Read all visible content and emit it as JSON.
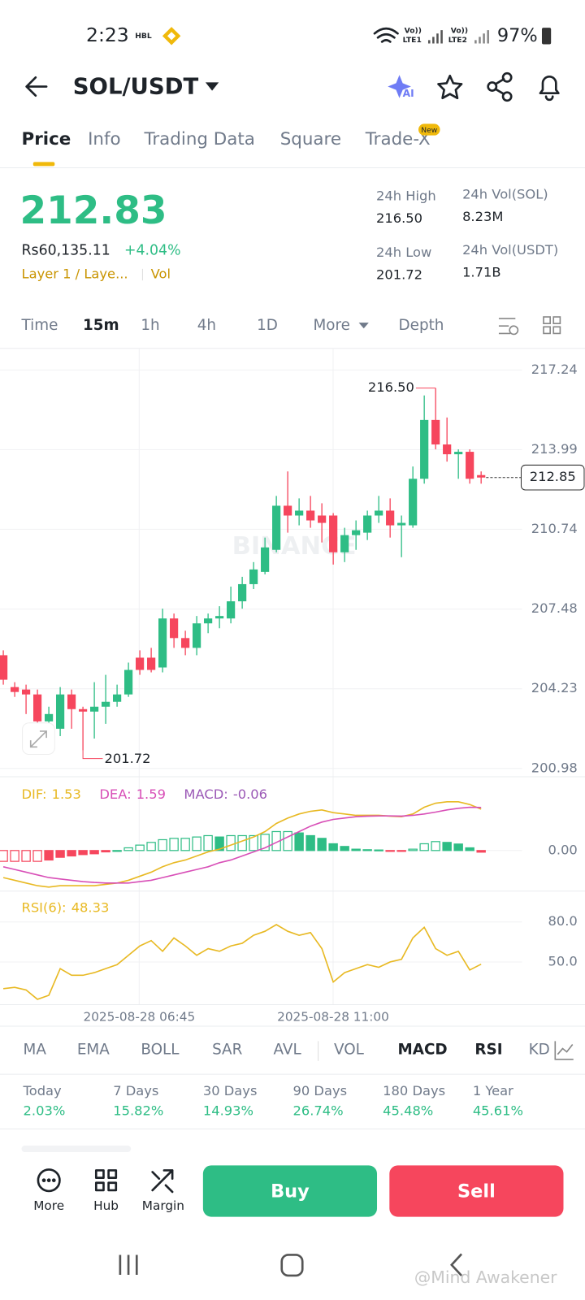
{
  "status": {
    "time": "2:23",
    "carrier": "HBL",
    "volte1": "Vo))",
    "lte1": "LTE1",
    "volte2": "Vo))",
    "lte2": "LTE2",
    "battery": "97%"
  },
  "header": {
    "pair": "SOL/USDT",
    "ai": "AI"
  },
  "tabs": [
    "Price",
    "Info",
    "Trading Data",
    "Square",
    "Trade-X"
  ],
  "new_badge": "New",
  "ticker": {
    "price": "212.83",
    "local_price": "Rs60,135.11",
    "change": "+4.04%",
    "sector": "Layer 1 / Laye...",
    "sector_tag": "Vol",
    "stats": [
      {
        "label": "24h High",
        "value": "216.50"
      },
      {
        "label": "24h Low",
        "value": "201.72"
      },
      {
        "label": "24h Vol(SOL)",
        "value": "8.23M"
      },
      {
        "label": "24h Vol(USDT)",
        "value": "1.71B"
      }
    ]
  },
  "intervals": [
    "Time",
    "15m",
    "1h",
    "4h",
    "1D",
    "More",
    "Depth"
  ],
  "chart": {
    "type": "candlestick",
    "watermark": "BINANCE",
    "ylim": [
      200.64,
      218.12
    ],
    "yticks": [
      217.24,
      213.99,
      210.74,
      207.48,
      204.23,
      200.98
    ],
    "time_labels": [
      "2025-08-28 06:45",
      "2025-08-28 11:00"
    ],
    "high_mark": {
      "value": 216.5,
      "label": "216.50"
    },
    "low_mark": 201.72,
    "last_price": 212.85,
    "up_color": "#2ebd85",
    "down_color": "#f6465d",
    "candles": [
      {
        "o": 205.6,
        "h": 205.8,
        "l": 204.4,
        "c": 204.6
      },
      {
        "o": 204.3,
        "h": 204.5,
        "l": 203.9,
        "c": 204.1
      },
      {
        "o": 204.2,
        "h": 204.4,
        "l": 203.2,
        "c": 204.0
      },
      {
        "o": 204.0,
        "h": 204.2,
        "l": 202.2,
        "c": 202.9
      },
      {
        "o": 202.9,
        "h": 203.5,
        "l": 202.5,
        "c": 203.2
      },
      {
        "o": 202.6,
        "h": 204.3,
        "l": 202.3,
        "c": 204.0
      },
      {
        "o": 204.0,
        "h": 204.2,
        "l": 202.6,
        "c": 203.4
      },
      {
        "o": 203.4,
        "h": 203.5,
        "l": 201.72,
        "c": 203.3
      },
      {
        "o": 203.3,
        "h": 204.5,
        "l": 202.2,
        "c": 203.5
      },
      {
        "o": 203.5,
        "h": 204.8,
        "l": 202.8,
        "c": 203.7
      },
      {
        "o": 203.7,
        "h": 204.4,
        "l": 203.5,
        "c": 204.0
      },
      {
        "o": 204.0,
        "h": 205.3,
        "l": 203.9,
        "c": 205.0
      },
      {
        "o": 205.5,
        "h": 205.8,
        "l": 204.8,
        "c": 205.0
      },
      {
        "o": 205.5,
        "h": 205.9,
        "l": 204.9,
        "c": 205.0
      },
      {
        "o": 205.1,
        "h": 207.5,
        "l": 204.9,
        "c": 207.1
      },
      {
        "o": 207.1,
        "h": 207.3,
        "l": 205.9,
        "c": 206.3
      },
      {
        "o": 206.3,
        "h": 206.6,
        "l": 205.6,
        "c": 205.9
      },
      {
        "o": 205.9,
        "h": 207.2,
        "l": 205.6,
        "c": 206.9
      },
      {
        "o": 206.9,
        "h": 207.3,
        "l": 206.5,
        "c": 207.1
      },
      {
        "o": 207.1,
        "h": 207.6,
        "l": 206.7,
        "c": 207.2
      },
      {
        "o": 207.1,
        "h": 208.4,
        "l": 206.9,
        "c": 207.8
      },
      {
        "o": 207.8,
        "h": 208.8,
        "l": 207.5,
        "c": 208.5
      },
      {
        "o": 208.5,
        "h": 209.4,
        "l": 208.3,
        "c": 209.1
      },
      {
        "o": 209.0,
        "h": 210.4,
        "l": 208.9,
        "c": 210.0
      },
      {
        "o": 209.9,
        "h": 212.1,
        "l": 209.8,
        "c": 211.7
      },
      {
        "o": 211.7,
        "h": 213.1,
        "l": 210.6,
        "c": 211.3
      },
      {
        "o": 211.3,
        "h": 212.0,
        "l": 210.9,
        "c": 211.5
      },
      {
        "o": 211.5,
        "h": 212.1,
        "l": 210.8,
        "c": 211.1
      },
      {
        "o": 211.3,
        "h": 211.8,
        "l": 210.2,
        "c": 211.0
      },
      {
        "o": 211.3,
        "h": 211.4,
        "l": 209.3,
        "c": 209.8
      },
      {
        "o": 209.8,
        "h": 210.8,
        "l": 209.4,
        "c": 210.5
      },
      {
        "o": 210.5,
        "h": 211.1,
        "l": 209.9,
        "c": 210.7
      },
      {
        "o": 210.6,
        "h": 211.5,
        "l": 210.3,
        "c": 211.3
      },
      {
        "o": 211.3,
        "h": 212.1,
        "l": 211.0,
        "c": 211.5
      },
      {
        "o": 211.5,
        "h": 212.0,
        "l": 210.4,
        "c": 210.9
      },
      {
        "o": 210.9,
        "h": 211.3,
        "l": 209.6,
        "c": 211.0
      },
      {
        "o": 210.9,
        "h": 213.3,
        "l": 210.8,
        "c": 212.8
      },
      {
        "o": 212.8,
        "h": 216.2,
        "l": 212.6,
        "c": 215.2
      },
      {
        "o": 215.2,
        "h": 216.5,
        "l": 214.0,
        "c": 214.2
      },
      {
        "o": 214.2,
        "h": 215.3,
        "l": 213.5,
        "c": 213.8
      },
      {
        "o": 213.8,
        "h": 214.0,
        "l": 212.8,
        "c": 213.9
      },
      {
        "o": 213.9,
        "h": 214.0,
        "l": 212.6,
        "c": 212.8
      },
      {
        "o": 212.95,
        "h": 213.1,
        "l": 212.6,
        "c": 212.85
      }
    ],
    "macd": {
      "ylim": [
        -1.5,
        2.48
      ],
      "yticks": [
        {
          "value": 0,
          "label": "0.00"
        }
      ],
      "dif_name": "DIF:",
      "dea_name": "DEA:",
      "macd_name": "MACD:",
      "dif_color": "#e8b923",
      "dea_color": "#d84fb7",
      "macd_color": "#9b59b6",
      "dif": [
        -1.0,
        -1.1,
        -1.2,
        -1.3,
        -1.35,
        -1.3,
        -1.3,
        -1.3,
        -1.3,
        -1.25,
        -1.2,
        -1.1,
        -0.95,
        -0.8,
        -0.6,
        -0.45,
        -0.35,
        -0.2,
        -0.05,
        0.05,
        0.2,
        0.35,
        0.5,
        0.7,
        1.0,
        1.2,
        1.35,
        1.45,
        1.5,
        1.4,
        1.35,
        1.3,
        1.3,
        1.3,
        1.27,
        1.25,
        1.35,
        1.6,
        1.75,
        1.8,
        1.8,
        1.7,
        1.53
      ],
      "dea": [
        -0.6,
        -0.7,
        -0.8,
        -0.9,
        -1.0,
        -1.05,
        -1.1,
        -1.15,
        -1.18,
        -1.2,
        -1.2,
        -1.2,
        -1.15,
        -1.1,
        -1.0,
        -0.9,
        -0.8,
        -0.7,
        -0.6,
        -0.45,
        -0.35,
        -0.2,
        -0.05,
        0.1,
        0.3,
        0.5,
        0.7,
        0.9,
        1.05,
        1.15,
        1.2,
        1.25,
        1.27,
        1.28,
        1.28,
        1.27,
        1.3,
        1.35,
        1.42,
        1.5,
        1.56,
        1.6,
        1.59
      ],
      "hist": [
        -0.4,
        -0.4,
        -0.4,
        -0.4,
        -0.35,
        -0.25,
        -0.2,
        -0.15,
        -0.12,
        -0.05,
        0,
        0.1,
        0.2,
        0.3,
        0.4,
        0.45,
        0.45,
        0.5,
        0.55,
        0.5,
        0.55,
        0.55,
        0.55,
        0.6,
        0.7,
        0.7,
        0.65,
        0.55,
        0.45,
        0.25,
        0.15,
        0.05,
        0.03,
        0.02,
        -0.01,
        -0.02,
        0.05,
        0.25,
        0.33,
        0.3,
        0.24,
        0.1,
        -0.06
      ]
    },
    "rsi": {
      "name": "RSI(6):",
      "color": "#e8b923",
      "ylim": [
        18,
        100
      ],
      "yticks": [
        {
          "value": 80,
          "label": "80.0"
        },
        {
          "value": 50,
          "label": "50.0"
        }
      ],
      "values": [
        30,
        31,
        29,
        22,
        25,
        45,
        40,
        40,
        42,
        45,
        48,
        55,
        62,
        66,
        58,
        68,
        62,
        55,
        60,
        58,
        62,
        64,
        70,
        73,
        78,
        73,
        70,
        72,
        60,
        35,
        42,
        45,
        48,
        46,
        50,
        52,
        68,
        76,
        60,
        55,
        58,
        44,
        48.33
      ]
    }
  },
  "indicators": [
    "MA",
    "EMA",
    "BOLL",
    "SAR",
    "AVL",
    "VOL",
    "MACD",
    "RSI",
    "KD"
  ],
  "performance": [
    {
      "label": "Today",
      "value": "2.03%"
    },
    {
      "label": "7 Days",
      "value": "15.82%"
    },
    {
      "label": "30 Days",
      "value": "14.93%"
    },
    {
      "label": "90 Days",
      "value": "26.74%"
    },
    {
      "label": "180 Days",
      "value": "45.48%"
    },
    {
      "label": "1 Year",
      "value": "45.61%"
    }
  ],
  "actions": [
    "More",
    "Hub",
    "Margin"
  ],
  "buy": "Buy",
  "sell": "Sell",
  "watermark": "@Mind Awakener"
}
